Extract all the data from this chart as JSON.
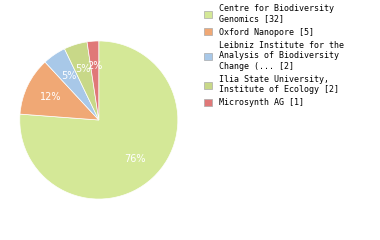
{
  "labels": [
    "Centre for Biodiversity\nGenomics [32]",
    "Oxford Nanopore [5]",
    "Leibniz Institute for the\nAnalysis of Biodiversity\nChange (... [2]",
    "Ilia State University,\nInstitute of Ecology [2]",
    "Microsynth AG [1]"
  ],
  "values": [
    32,
    5,
    2,
    2,
    1
  ],
  "colors": [
    "#d4e897",
    "#f0a875",
    "#a8c8e8",
    "#c8d888",
    "#e07878"
  ],
  "startangle": 90,
  "background_color": "#ffffff",
  "text_color": "#ffffff",
  "pct_fontsize": 7.0,
  "legend_fontsize": 6.0
}
